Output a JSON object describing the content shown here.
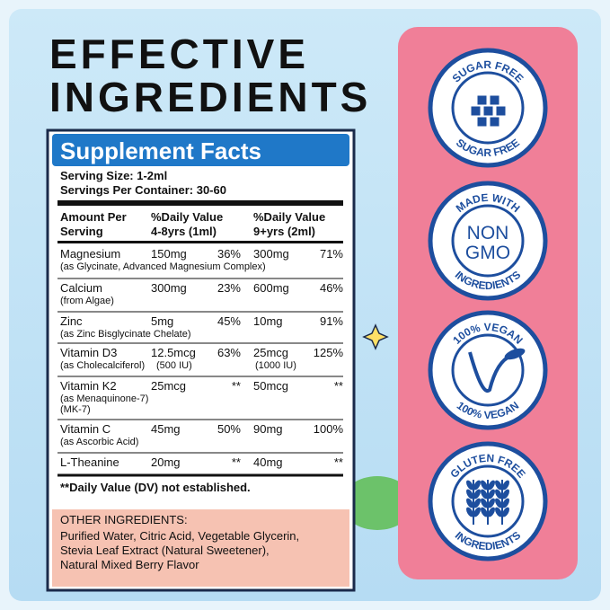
{
  "title": [
    "EFFECTIVE",
    "INGREDIENTS"
  ],
  "facts": {
    "header": "Supplement Facts",
    "serving_size": "Serving Size: 1-2ml",
    "servings": "Servings Per Container: 30-60",
    "columns": [
      [
        "Amount Per",
        "Serving"
      ],
      [
        "%Daily Value",
        "4-8yrs (1ml)"
      ],
      [
        "%Daily Value",
        "9+yrs (2ml)"
      ]
    ],
    "rows": [
      {
        "name": "Magnesium",
        "notes": [
          "(as Glycinate, Advanced Magnesium Complex)"
        ],
        "amt1": "150mg",
        "dv1": "36%",
        "amt2": "300mg",
        "dv2": "71%"
      },
      {
        "name": "Calcium",
        "notes": [
          "(from Algae)"
        ],
        "amt1": "300mg",
        "dv1": "23%",
        "amt2": "600mg",
        "dv2": "46%"
      },
      {
        "name": "Zinc",
        "notes": [
          "(as Zinc Bisglycinate Chelate)"
        ],
        "amt1": "5mg",
        "dv1": "45%",
        "amt2": "10mg",
        "dv2": "91%"
      },
      {
        "name": "Vitamin D3",
        "notes": [
          "(as Cholecalciferol)"
        ],
        "amt1": "12.5mcg",
        "sub1": "(500 IU)",
        "dv1": "63%",
        "amt2": "25mcg",
        "sub2": "(1000 IU)",
        "dv2": "125%"
      },
      {
        "name": "Vitamin K2",
        "notes": [
          "(as Menaquinone-7)",
          "(MK-7)"
        ],
        "amt1": "25mcg",
        "dv1": "**",
        "amt2": "50mcg",
        "dv2": "**"
      },
      {
        "name": "Vitamin C",
        "notes": [
          "(as Ascorbic Acid)"
        ],
        "amt1": "45mg",
        "dv1": "50%",
        "amt2": "90mg",
        "dv2": "100%"
      },
      {
        "name": "L-Theanine",
        "notes": [],
        "amt1": "20mg",
        "dv1": "**",
        "amt2": "40mg",
        "dv2": "**"
      }
    ],
    "footnote": "**Daily Value (DV) not established.",
    "other_heading": "OTHER INGREDIENTS:",
    "other_lines": [
      "Purified Water, Citric Acid, Vegetable Glycerin,",
      "Stevia Leaf Extract (Natural Sweetener),",
      "Natural Mixed Berry Flavor"
    ]
  },
  "badges": [
    {
      "top": "SUGAR FREE",
      "center": [],
      "bottom": "SUGAR FREE"
    },
    {
      "top": "MADE WITH",
      "center": [
        "NON",
        "GMO"
      ],
      "bottom": "INGREDIENTS"
    },
    {
      "top": "100% VEGAN",
      "center": [],
      "bottom": "100% VEGAN"
    },
    {
      "top": "GLUTEN FREE",
      "center": [],
      "bottom": "INGREDIENTS"
    }
  ]
}
